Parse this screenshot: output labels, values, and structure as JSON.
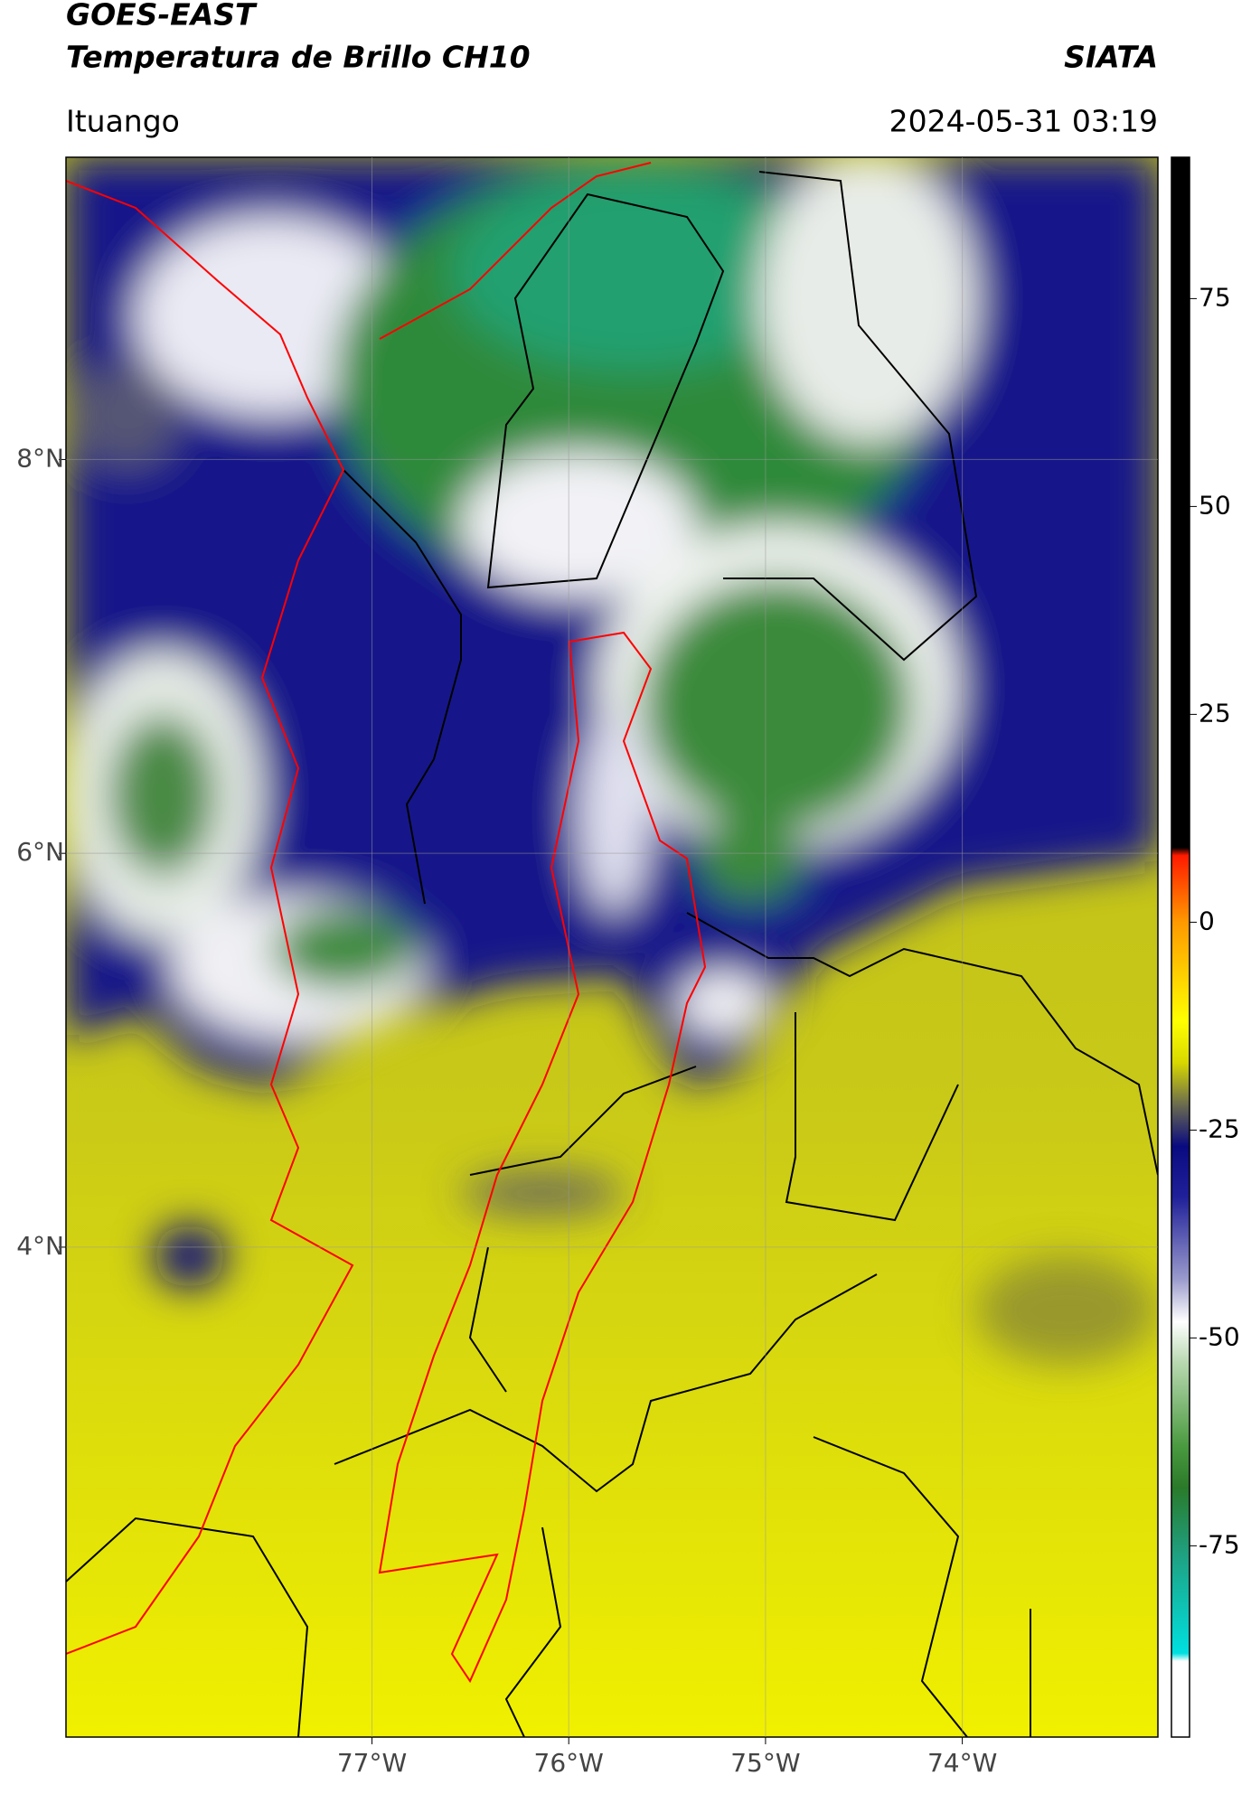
{
  "header": {
    "title": "GOES-EAST",
    "subtitle": "Temperatura de Brillo CH10",
    "credit": "SIATA",
    "location": "Ituango",
    "datetime": "2024-05-31 03:19"
  },
  "map": {
    "xlim": [
      -78.555,
      -73.006
    ],
    "ylim": [
      1.512,
      9.535
    ],
    "xticks": [
      {
        "value": -77,
        "label": "77°W"
      },
      {
        "value": -76,
        "label": "76°W"
      },
      {
        "value": -75,
        "label": "75°W"
      },
      {
        "value": -74,
        "label": "74°W"
      }
    ],
    "yticks": [
      {
        "value": 8,
        "label": "8°N"
      },
      {
        "value": 6,
        "label": "6°N"
      },
      {
        "value": 4,
        "label": "4°N"
      }
    ],
    "grid": true
  },
  "colorbar": {
    "lim": [
      -98,
      92
    ],
    "ticks": [
      75,
      50,
      25,
      0,
      -25,
      -50,
      -75
    ]
  }
}
